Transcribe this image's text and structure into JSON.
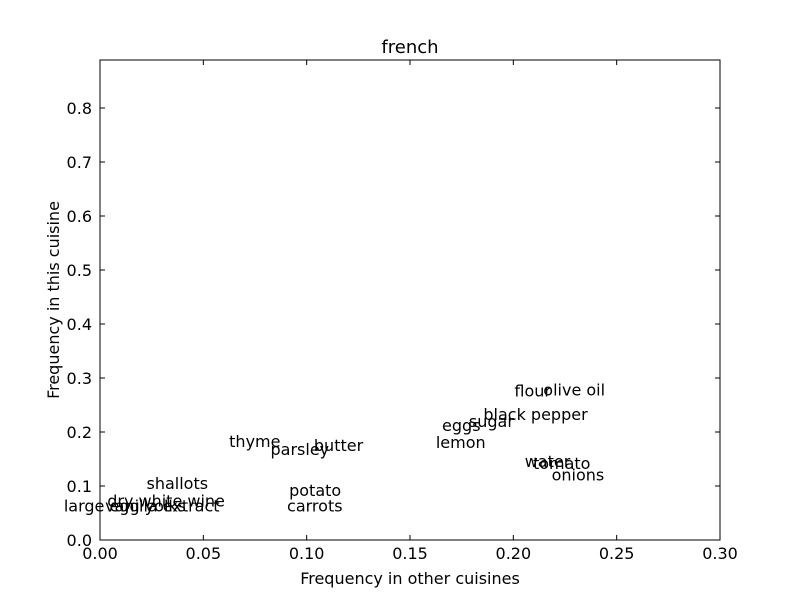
{
  "chart_data": {
    "type": "scatter",
    "title": "french",
    "xlabel": "Frequency in other cuisines",
    "ylabel": "Frequency in this cuisine",
    "xlim": [
      0.0,
      0.3
    ],
    "ylim": [
      0.0,
      0.8889
    ],
    "grid": false,
    "xticks": [
      {
        "value": 0.0,
        "label": "0.00"
      },
      {
        "value": 0.05,
        "label": "0.05"
      },
      {
        "value": 0.1,
        "label": "0.10"
      },
      {
        "value": 0.15,
        "label": "0.15"
      },
      {
        "value": 0.2,
        "label": "0.20"
      },
      {
        "value": 0.25,
        "label": "0.25"
      },
      {
        "value": 0.3,
        "label": "0.30"
      }
    ],
    "yticks": [
      {
        "value": 0.0,
        "label": "0.0"
      },
      {
        "value": 0.1,
        "label": "0.1"
      },
      {
        "value": 0.2,
        "label": "0.2"
      },
      {
        "value": 0.3,
        "label": "0.3"
      },
      {
        "value": 0.4,
        "label": "0.4"
      },
      {
        "value": 0.5,
        "label": "0.5"
      },
      {
        "value": 0.6,
        "label": "0.6"
      },
      {
        "value": 0.7,
        "label": "0.7"
      },
      {
        "value": 0.8,
        "label": "0.8"
      }
    ],
    "points": [
      {
        "label": "flour",
        "x": 0.2005,
        "y": 0.2661
      },
      {
        "label": "olive oil",
        "x": 0.2145,
        "y": 0.2678
      },
      {
        "label": "black pepper",
        "x": 0.1855,
        "y": 0.2222
      },
      {
        "label": "sugar",
        "x": 0.1785,
        "y": 0.2092
      },
      {
        "label": "eggs",
        "x": 0.1655,
        "y": 0.2015
      },
      {
        "label": "lemon",
        "x": 0.1625,
        "y": 0.1704
      },
      {
        "label": "water",
        "x": 0.2055,
        "y": 0.1355
      },
      {
        "label": "tomato",
        "x": 0.2095,
        "y": 0.1319
      },
      {
        "label": "onions",
        "x": 0.2185,
        "y": 0.1106
      },
      {
        "label": "thyme",
        "x": 0.0625,
        "y": 0.1723
      },
      {
        "label": "parsley",
        "x": 0.0825,
        "y": 0.1572
      },
      {
        "label": "butter",
        "x": 0.1035,
        "y": 0.1648
      },
      {
        "label": "potato",
        "x": 0.0915,
        "y": 0.0818
      },
      {
        "label": "carrots",
        "x": 0.0905,
        "y": 0.0532
      },
      {
        "label": "shallots",
        "x": 0.0225,
        "y": 0.0944
      },
      {
        "label": "dry white wine",
        "x": 0.0035,
        "y": 0.0624
      },
      {
        "label": "large egg yolks",
        "x": -0.0175,
        "y": 0.0532
      },
      {
        "label": "vanilla extract",
        "x": 0.0025,
        "y": 0.0532
      }
    ]
  }
}
